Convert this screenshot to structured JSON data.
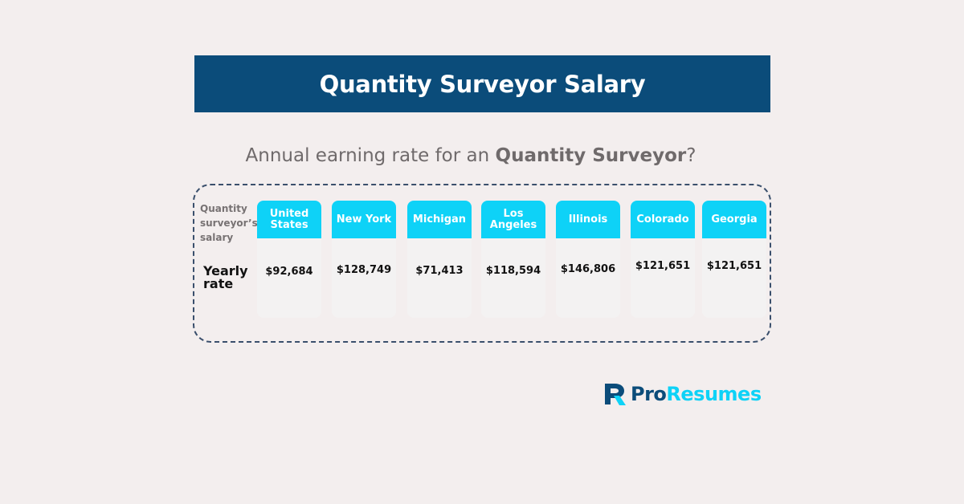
{
  "header": {
    "title": "Quantity Surveyor Salary"
  },
  "subtitle": {
    "prefix": "Annual earning rate for an ",
    "bold": "Quantity Surveyor",
    "suffix": "?"
  },
  "table": {
    "row_header": "Quantity surveyor’s salary",
    "row_label": "Yearly rate",
    "columns": [
      {
        "name": "United States",
        "value": "$92,684"
      },
      {
        "name": "New York",
        "value": "$128,749"
      },
      {
        "name": "Michigan",
        "value": "$71,413"
      },
      {
        "name": "Los Angeles",
        "value": "$118,594"
      },
      {
        "name": "Illinois",
        "value": "$146,806"
      },
      {
        "name": "Colorado",
        "value": "$121,651"
      },
      {
        "name": "Georgia",
        "value": "$121,651"
      }
    ]
  },
  "logo": {
    "pro": "Pro",
    "resumes": "Resumes"
  },
  "colors": {
    "navy": "#0b4c7a",
    "cyan": "#0ed2f7",
    "background": "#f3eeee"
  }
}
